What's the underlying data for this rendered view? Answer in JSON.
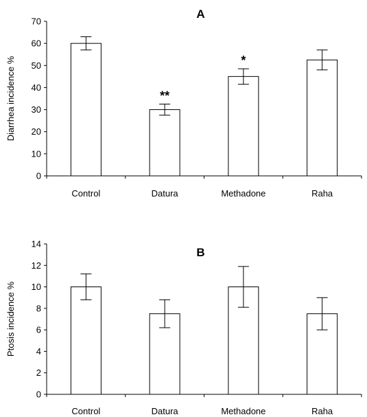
{
  "chart_data": [
    {
      "type": "bar",
      "title": "A",
      "ylabel": "Diarrhea incidence %",
      "xlabel": "",
      "categories": [
        "Control",
        "Datura",
        "Methadone",
        "Raha"
      ],
      "values": [
        60,
        30,
        45,
        52.5
      ],
      "errors": [
        3,
        2.5,
        3.5,
        4.5
      ],
      "annotations": [
        "",
        "**",
        "*",
        ""
      ],
      "ylim": [
        0,
        70
      ],
      "yticks": [
        0,
        10,
        20,
        30,
        40,
        50,
        60,
        70
      ],
      "grid": false,
      "bar_fill": "#ffffff",
      "bar_stroke": "#000000"
    },
    {
      "type": "bar",
      "title": "B",
      "ylabel": "Ptosis incidence %",
      "xlabel": "",
      "categories": [
        "Control",
        "Datura",
        "Methadone",
        "Raha"
      ],
      "values": [
        10,
        7.5,
        10,
        7.5
      ],
      "errors": [
        1.2,
        1.3,
        1.9,
        1.5
      ],
      "annotations": [
        "",
        "",
        "",
        ""
      ],
      "ylim": [
        0,
        14
      ],
      "yticks": [
        0,
        2,
        4,
        6,
        8,
        10,
        12,
        14
      ],
      "grid": false,
      "bar_fill": "#ffffff",
      "bar_stroke": "#000000"
    }
  ]
}
